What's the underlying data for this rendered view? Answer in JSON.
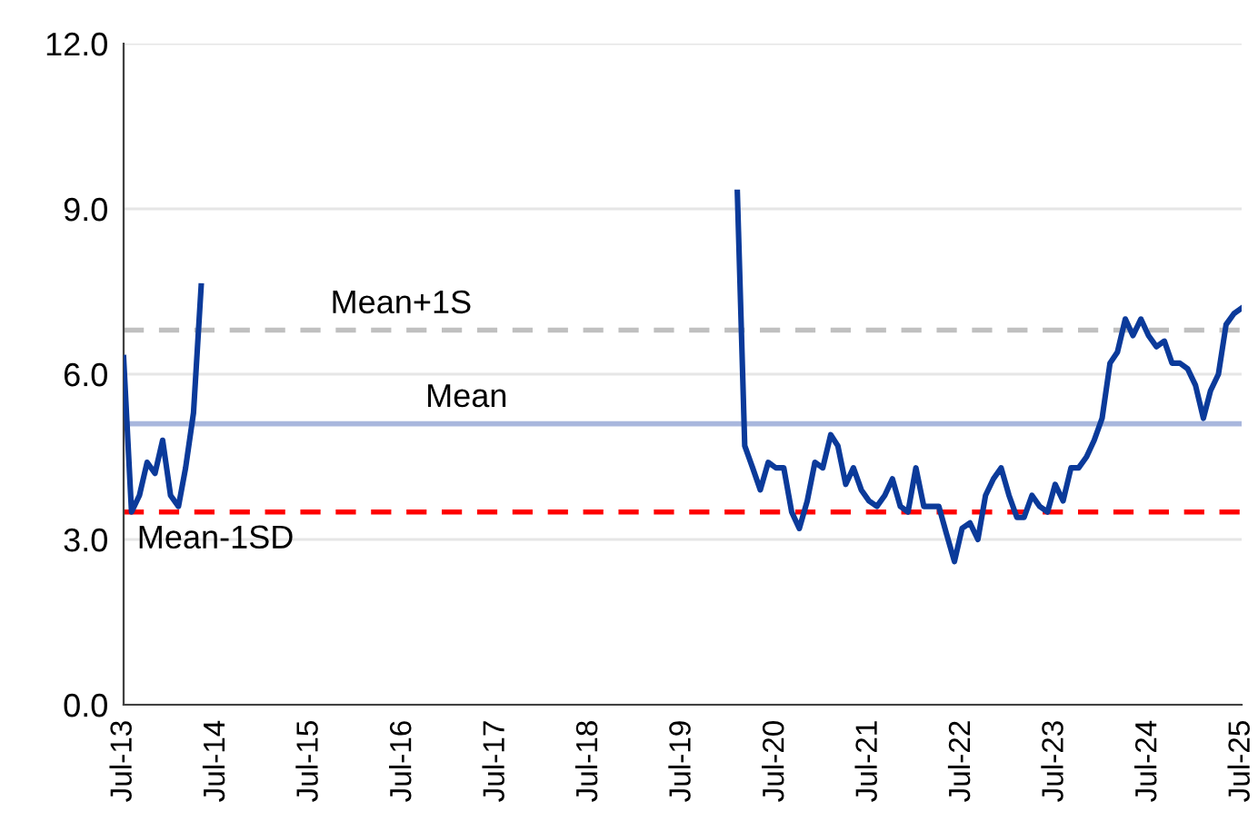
{
  "chart_data": {
    "type": "line",
    "series": [
      {
        "color": "#0b3a9a",
        "x": [
          "2013-07",
          "2013-08",
          "2013-09",
          "2013-10",
          "2013-11",
          "2013-12",
          "2014-01",
          "2014-02",
          "2014-03",
          "2014-04",
          "2014-05"
        ],
        "values": [
          6.3,
          3.5,
          3.8,
          4.4,
          4.2,
          4.8,
          3.8,
          3.6,
          4.3,
          5.3,
          7.6
        ]
      },
      {
        "color": "#0b3a9a",
        "x": [
          "2020-02",
          "2020-03",
          "2020-04",
          "2020-05",
          "2020-06",
          "2020-07",
          "2020-08",
          "2020-09",
          "2020-10",
          "2020-11",
          "2020-12",
          "2021-01",
          "2021-02",
          "2021-03",
          "2021-04",
          "2021-05",
          "2021-06",
          "2021-07",
          "2021-08",
          "2021-09",
          "2021-10",
          "2021-11",
          "2021-12",
          "2022-01",
          "2022-02",
          "2022-03",
          "2022-04",
          "2022-05",
          "2022-06",
          "2022-07",
          "2022-08",
          "2022-09",
          "2022-10",
          "2022-11",
          "2022-12",
          "2023-01",
          "2023-02",
          "2023-03",
          "2023-04",
          "2023-05",
          "2023-06",
          "2023-07",
          "2023-08",
          "2023-09",
          "2023-10",
          "2023-11",
          "2023-12",
          "2024-01",
          "2024-02",
          "2024-03",
          "2024-04",
          "2024-05",
          "2024-06",
          "2024-07",
          "2024-08",
          "2024-09",
          "2024-10",
          "2024-11",
          "2024-12",
          "2025-01",
          "2025-02",
          "2025-03",
          "2025-04",
          "2025-05",
          "2025-06",
          "2025-07"
        ],
        "values": [
          9.3,
          4.7,
          4.3,
          3.9,
          4.4,
          4.3,
          4.3,
          3.5,
          3.2,
          3.7,
          4.4,
          4.3,
          4.9,
          4.7,
          4.0,
          4.3,
          3.9,
          3.7,
          3.6,
          3.8,
          4.1,
          3.6,
          3.5,
          4.3,
          3.6,
          3.6,
          3.6,
          3.1,
          2.6,
          3.2,
          3.3,
          3.0,
          3.8,
          4.1,
          4.3,
          3.8,
          3.4,
          3.4,
          3.8,
          3.6,
          3.5,
          4.0,
          3.7,
          4.3,
          4.3,
          4.5,
          4.8,
          5.2,
          6.2,
          6.4,
          7.0,
          6.7,
          7.0,
          6.7,
          6.5,
          6.6,
          6.2,
          6.2,
          6.1,
          5.8,
          5.2,
          5.7,
          6.0,
          6.9,
          7.1,
          7.2
        ]
      }
    ],
    "xlim": [
      "2013-07",
      "2025-07"
    ],
    "xticks": [
      {
        "value": "2013-07",
        "label": "Jul-13"
      },
      {
        "value": "2014-07",
        "label": "Jul-14"
      },
      {
        "value": "2015-07",
        "label": "Jul-15"
      },
      {
        "value": "2016-07",
        "label": "Jul-16"
      },
      {
        "value": "2017-07",
        "label": "Jul-17"
      },
      {
        "value": "2018-07",
        "label": "Jul-18"
      },
      {
        "value": "2019-07",
        "label": "Jul-19"
      },
      {
        "value": "2020-07",
        "label": "Jul-20"
      },
      {
        "value": "2021-07",
        "label": "Jul-21"
      },
      {
        "value": "2022-07",
        "label": "Jul-22"
      },
      {
        "value": "2023-07",
        "label": "Jul-23"
      },
      {
        "value": "2024-07",
        "label": "Jul-24"
      },
      {
        "value": "2025-07",
        "label": "Jul-25"
      }
    ],
    "ylim": [
      0,
      12
    ],
    "yticks": [
      {
        "value": 0,
        "label": "0.0"
      },
      {
        "value": 3,
        "label": "3.0"
      },
      {
        "value": 6,
        "label": "6.0"
      },
      {
        "value": 9,
        "label": "9.0"
      },
      {
        "value": 12,
        "label": "12.0"
      }
    ],
    "grid": "y",
    "ref_lines": [
      {
        "axis": "y",
        "value": 6.8,
        "label": "Mean+1S",
        "color": "#c0c0c0",
        "line_style": "dashed"
      },
      {
        "axis": "y",
        "value": 5.1,
        "label": "Mean",
        "color": "#a9b7dd",
        "line_style": "solid"
      },
      {
        "axis": "y",
        "value": 3.5,
        "label": "Mean-1SD",
        "color": "#ff0000",
        "line_style": "dashed"
      }
    ]
  }
}
